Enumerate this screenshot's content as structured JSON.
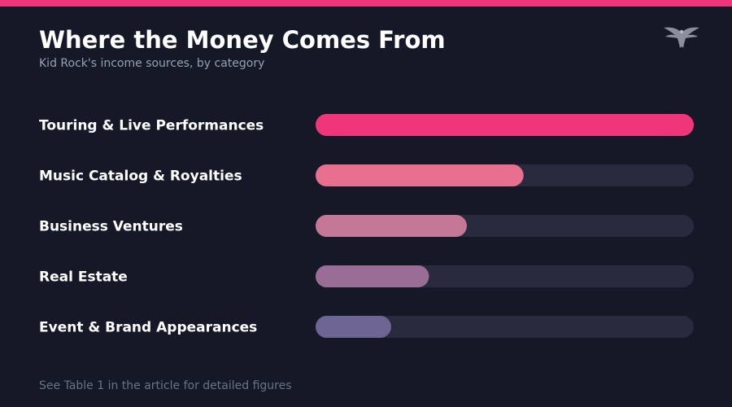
{
  "header": {
    "title": "Where the Money Comes From",
    "subtitle": "Kid Rock's income sources, by category"
  },
  "logo": {
    "icon": "eagle-icon"
  },
  "footnote": "See Table 1 in the article for detailed figures",
  "colors": {
    "accent": "#f0357a",
    "track": "#272b3d",
    "bars": [
      "#f0357a",
      "#e96f91",
      "#c47896",
      "#9a6d96",
      "#6e6593"
    ]
  },
  "chart_data": {
    "type": "bar",
    "orientation": "horizontal",
    "categories": [
      "Touring & Live Performances",
      "Music Catalog & Royalties",
      "Business Ventures",
      "Real Estate",
      "Event & Brand Appearances"
    ],
    "values": [
      100,
      55,
      40,
      30,
      20
    ],
    "xlim": [
      0,
      100
    ],
    "grid": false,
    "legend": "none"
  }
}
